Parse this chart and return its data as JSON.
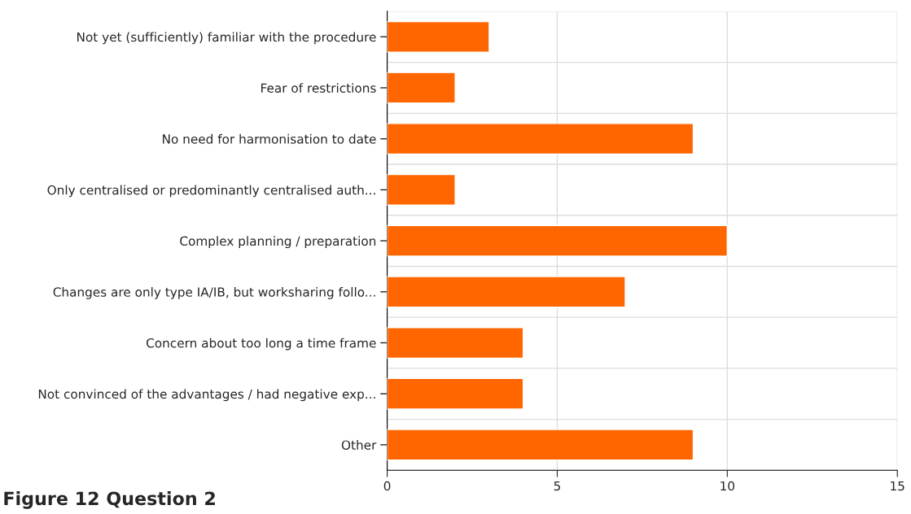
{
  "chart_data": {
    "type": "bar",
    "orientation": "horizontal",
    "categories": [
      "Not yet (sufficiently) familiar with the procedure",
      "Fear of restrictions",
      "No need for harmonisation to date",
      "Only centralised or predominantly centralised auth...",
      "Complex planning / preparation",
      "Changes are only type IA/IB, but worksharing follo...",
      "Concern about too long a time frame",
      "Not convinced of the advantages / had negative exp...",
      "Other"
    ],
    "values": [
      3,
      2,
      9,
      2,
      10,
      7,
      4,
      4,
      9
    ],
    "color": "#ff6600",
    "xlim": [
      0,
      15
    ],
    "xticks": [
      0,
      5,
      10,
      15
    ],
    "grid": true,
    "annotations": [
      "Figure 12 Question 2"
    ]
  }
}
